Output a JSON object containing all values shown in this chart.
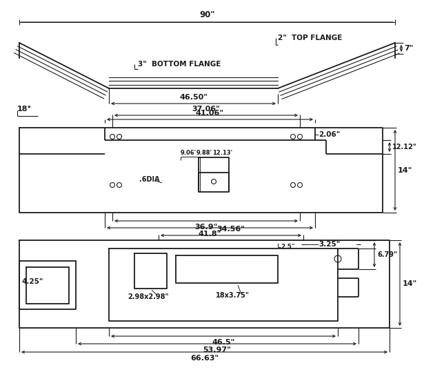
{
  "line_color": "#1a1a1a",
  "lw": 1.3,
  "thin_lw": 0.8,
  "view1": {
    "dim_90": "90\"",
    "dim_46_5": "46.50\"",
    "dim_18": "18°",
    "dim_7": "7\"",
    "label_top_flange": "2\"  TOP FLANGE",
    "label_bot_flange": "3\"  BOTTOM FLANGE"
  },
  "view2": {
    "dim_41_06": "41.06\"",
    "dim_37_06": "37.06\"",
    "dim_2_06": "2.06\"",
    "dim_12_12": "12.12\"",
    "dim_14": "14\"",
    "dim_9_06": "9.06'",
    "dim_9_88": "9.88'",
    "dim_12_13": "12.13'",
    "label_dia": ".6DIA",
    "dim_36_9": "36.9\"",
    "dim_41_8": "41.8\""
  },
  "view3": {
    "dim_34_56": "34.56\"",
    "dim_2_5": "2.5\"",
    "dim_3_25": "3.25\"",
    "dim_6_79": "6.79\"",
    "dim_4_25": "4.25\"",
    "dim_14": "14\"",
    "label_sq": "2.98x2.98\"",
    "label_rect": "18x3.75\"",
    "dim_46_5": "46.5\"",
    "dim_53_97": "53.97\"",
    "dim_66_63": "66.63\""
  }
}
